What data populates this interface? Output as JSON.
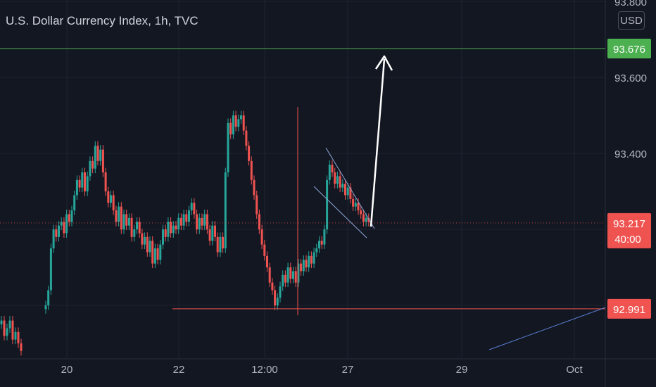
{
  "header": {
    "title": "U.S. Dollar Currency Index, 1h, TVC"
  },
  "currency_label": "USD",
  "colors": {
    "background": "#131722",
    "grid": "#1f2330",
    "axis_text": "#b2b5be",
    "up": "#26a69a",
    "down": "#ef5350",
    "resistance_line": "#4caf50",
    "support_line": "#f05350",
    "channel_line": "#8fa8d8",
    "trend_line": "#5b7fd6",
    "arrow": "#ffffff"
  },
  "chart_data": {
    "type": "candlestick",
    "title": "U.S. Dollar Currency Index, 1h, TVC",
    "x_ticks": [
      "20",
      "22",
      "12:00",
      "27",
      "29",
      "Oct"
    ],
    "y_ticks": [
      "93.800",
      "93.600",
      "93.400"
    ],
    "ylim": [
      92.9,
      93.82
    ],
    "grid": true,
    "price_labels": [
      {
        "value": "93.676",
        "color": "#4caf50"
      },
      {
        "value": "93.217",
        "sub": "40:00",
        "color": "#ef5350"
      },
      {
        "value": "92.991",
        "color": "#f05350"
      }
    ],
    "horizontal_lines": [
      {
        "name": "resistance",
        "value": 93.676
      },
      {
        "name": "support",
        "value": 92.991
      },
      {
        "name": "current-price",
        "value": 93.217
      }
    ],
    "series": [
      {
        "values": [
          92.96,
          92.92,
          92.94,
          92.96,
          92.91,
          92.93,
          92.9,
          92.88
        ]
      },
      {
        "values": [
          93.0,
          93.04,
          93.15,
          93.2,
          93.18,
          93.21,
          93.22,
          93.19,
          93.24,
          93.22,
          93.25,
          93.29,
          93.33,
          93.31,
          93.35,
          93.3,
          93.34,
          93.38,
          93.36,
          93.42,
          93.38,
          93.41,
          93.35,
          93.3,
          93.27,
          93.29,
          93.25,
          93.22,
          93.26,
          93.2,
          93.24,
          93.21,
          93.23,
          93.18,
          93.2,
          93.22,
          93.19,
          93.16,
          93.18,
          93.14,
          93.17,
          93.11,
          93.15,
          93.12,
          93.16,
          93.2,
          93.18,
          93.22,
          93.19,
          93.21,
          93.2,
          93.23,
          93.21,
          93.24,
          93.22,
          93.25,
          93.27,
          93.24,
          93.2,
          93.23,
          93.21,
          93.24,
          93.2,
          93.17,
          93.21,
          93.18,
          93.14,
          93.18,
          93.15,
          93.35,
          93.48,
          93.45,
          93.5,
          93.47,
          93.49,
          93.5,
          93.46,
          93.42,
          93.38,
          93.33,
          93.29,
          93.24,
          93.2,
          93.16,
          93.13,
          93.1,
          93.06,
          93.04,
          93.0,
          93.02,
          93.05,
          93.08,
          93.06,
          93.1,
          93.07,
          93.09,
          93.06,
          93.11,
          93.09,
          93.12,
          93.1,
          93.13,
          93.11,
          93.14,
          93.15,
          93.17,
          93.16,
          93.2,
          93.33,
          93.37,
          93.35,
          93.32,
          93.34,
          93.31,
          93.32,
          93.29,
          93.31,
          93.28,
          93.26,
          93.27,
          93.25,
          93.24,
          93.22,
          93.23,
          93.22
        ]
      }
    ],
    "annotations": {
      "falling_wedge": "descending channel near 27",
      "projection_arrow": "up to 93.676 target"
    }
  },
  "x_ticks_note": null
}
